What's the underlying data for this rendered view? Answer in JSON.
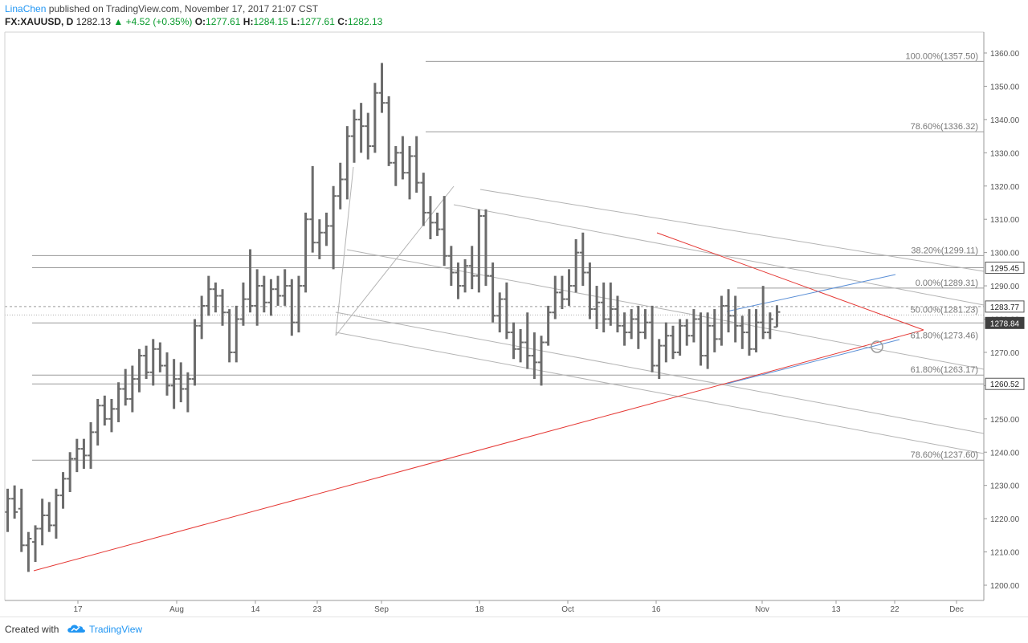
{
  "header": {
    "author": "LinaChen",
    "published_text": " published on TradingView.com, November 17, 2017 21:07 CST",
    "symbol": "FX:XAUUSD, D",
    "last_price": "1282.13",
    "change": "▲ +4.52 (+0.35%)",
    "open_label": "O:",
    "open": "1277.61",
    "high_label": "H:",
    "high": "1284.15",
    "low_label": "L:",
    "low": "1277.61",
    "close_label": "C:",
    "close": "1282.13"
  },
  "footer": {
    "created_with": "Created with",
    "brand": "TradingView",
    "logo_icon": "tradingview-cloud-icon"
  },
  "colors": {
    "bar": "#6b6b6b",
    "channel": "#b4b4b4",
    "level": "#9a9a9a",
    "trend_red": "#e53935",
    "trend_blue": "#5b8fd6",
    "axis_text": "#555555",
    "label_bg_dark": "#3f3f3f",
    "label_bg_light": "#ffffff"
  },
  "chart_data": {
    "type": "ohlc",
    "symbol": "FX:XAUUSD",
    "timeframe": "D",
    "x_tick_labels": [
      "17",
      "Aug",
      "14",
      "23",
      "Sep",
      "18",
      "Oct",
      "16",
      "Nov",
      "13",
      "22",
      "Dec"
    ],
    "y_range": [
      1196,
      1364
    ],
    "y_ticks": [
      1200,
      1210,
      1220,
      1230,
      1240,
      1250,
      1260,
      1270,
      1280,
      1290,
      1300,
      1310,
      1320,
      1330,
      1340,
      1350,
      1360
    ],
    "y_tick_labels": [
      "1200.00",
      "1210.00",
      "1220.00",
      "1230.00",
      "1240.00",
      "1250.00",
      "1260.00",
      "1270.00",
      "1280.00",
      "1290.00",
      "1300.00",
      "1310.00",
      "1320.00",
      "1330.00",
      "1340.00",
      "1350.00",
      "1360.00"
    ],
    "grid": false,
    "price_labels": [
      {
        "value": 1295.45,
        "text": "1295.45",
        "style": "light"
      },
      {
        "value": 1283.77,
        "text": "1283.77",
        "style": "light"
      },
      {
        "value": 1278.84,
        "text": "1278.84",
        "style": "dark"
      },
      {
        "value": 1260.52,
        "text": "1260.52",
        "style": "light"
      }
    ],
    "fib_levels": [
      {
        "text": "100.00%(1357.50)",
        "value": 1357.5
      },
      {
        "text": "78.60%(1336.32)",
        "value": 1336.32
      },
      {
        "text": "38.20%(1299.11)",
        "value": 1299.11
      },
      {
        "text": "0.00%(1289.31)",
        "value": 1289.31
      },
      {
        "text": "50.00%(1281.23)",
        "value": 1281.23
      },
      {
        "text": "61.80%(1273.46)",
        "value": 1273.46
      },
      {
        "text": "61.80%(1263.17)",
        "value": 1263.17
      },
      {
        "text": "78.60%(1237.60)",
        "value": 1237.6
      }
    ],
    "bars": [
      {
        "o": 1222,
        "h": 1229,
        "l": 1216,
        "c": 1226
      },
      {
        "o": 1226,
        "h": 1230,
        "l": 1220,
        "c": 1222
      },
      {
        "o": 1223,
        "h": 1229,
        "l": 1210,
        "c": 1212
      },
      {
        "o": 1212,
        "h": 1216,
        "l": 1204,
        "c": 1214
      },
      {
        "o": 1213,
        "h": 1218,
        "l": 1207,
        "c": 1217
      },
      {
        "o": 1217,
        "h": 1226,
        "l": 1212,
        "c": 1221
      },
      {
        "o": 1221,
        "h": 1225,
        "l": 1216,
        "c": 1218
      },
      {
        "o": 1218,
        "h": 1229,
        "l": 1214,
        "c": 1227
      },
      {
        "o": 1227,
        "h": 1234,
        "l": 1223,
        "c": 1232
      },
      {
        "o": 1232,
        "h": 1240,
        "l": 1228,
        "c": 1238
      },
      {
        "o": 1238,
        "h": 1244,
        "l": 1234,
        "c": 1241
      },
      {
        "o": 1241,
        "h": 1244,
        "l": 1235,
        "c": 1239
      },
      {
        "o": 1239,
        "h": 1249,
        "l": 1235,
        "c": 1246
      },
      {
        "o": 1246,
        "h": 1256,
        "l": 1242,
        "c": 1254
      },
      {
        "o": 1254,
        "h": 1257,
        "l": 1248,
        "c": 1250
      },
      {
        "o": 1250,
        "h": 1256,
        "l": 1246,
        "c": 1253
      },
      {
        "o": 1253,
        "h": 1261,
        "l": 1249,
        "c": 1259
      },
      {
        "o": 1259,
        "h": 1265,
        "l": 1254,
        "c": 1256
      },
      {
        "o": 1256,
        "h": 1266,
        "l": 1252,
        "c": 1262
      },
      {
        "o": 1262,
        "h": 1271,
        "l": 1258,
        "c": 1269
      },
      {
        "o": 1269,
        "h": 1272,
        "l": 1262,
        "c": 1264
      },
      {
        "o": 1264,
        "h": 1274,
        "l": 1260,
        "c": 1271
      },
      {
        "o": 1271,
        "h": 1273,
        "l": 1264,
        "c": 1266
      },
      {
        "o": 1266,
        "h": 1270,
        "l": 1257,
        "c": 1260
      },
      {
        "o": 1260,
        "h": 1268,
        "l": 1253,
        "c": 1262
      },
      {
        "o": 1262,
        "h": 1267,
        "l": 1255,
        "c": 1259
      },
      {
        "o": 1259,
        "h": 1264,
        "l": 1252,
        "c": 1262
      },
      {
        "o": 1262,
        "h": 1280,
        "l": 1260,
        "c": 1278
      },
      {
        "o": 1278,
        "h": 1287,
        "l": 1274,
        "c": 1284
      },
      {
        "o": 1284,
        "h": 1293,
        "l": 1281,
        "c": 1289
      },
      {
        "o": 1289,
        "h": 1291,
        "l": 1282,
        "c": 1287
      },
      {
        "o": 1287,
        "h": 1289,
        "l": 1278,
        "c": 1282
      },
      {
        "o": 1282,
        "h": 1283,
        "l": 1267,
        "c": 1270
      },
      {
        "o": 1270,
        "h": 1284,
        "l": 1267,
        "c": 1280
      },
      {
        "o": 1280,
        "h": 1291,
        "l": 1278,
        "c": 1286
      },
      {
        "o": 1286,
        "h": 1301,
        "l": 1282,
        "c": 1284
      },
      {
        "o": 1284,
        "h": 1295,
        "l": 1278,
        "c": 1290
      },
      {
        "o": 1290,
        "h": 1293,
        "l": 1282,
        "c": 1285
      },
      {
        "o": 1285,
        "h": 1292,
        "l": 1281,
        "c": 1289
      },
      {
        "o": 1289,
        "h": 1293,
        "l": 1284,
        "c": 1287
      },
      {
        "o": 1287,
        "h": 1295,
        "l": 1284,
        "c": 1290
      },
      {
        "o": 1290,
        "h": 1292,
        "l": 1275,
        "c": 1279
      },
      {
        "o": 1279,
        "h": 1293,
        "l": 1276,
        "c": 1290
      },
      {
        "o": 1290,
        "h": 1312,
        "l": 1288,
        "c": 1310
      },
      {
        "o": 1310,
        "h": 1326,
        "l": 1300,
        "c": 1303
      },
      {
        "o": 1303,
        "h": 1310,
        "l": 1298,
        "c": 1306
      },
      {
        "o": 1306,
        "h": 1312,
        "l": 1302,
        "c": 1308
      },
      {
        "o": 1308,
        "h": 1320,
        "l": 1295,
        "c": 1317
      },
      {
        "o": 1317,
        "h": 1327,
        "l": 1313,
        "c": 1322
      },
      {
        "o": 1322,
        "h": 1338,
        "l": 1316,
        "c": 1335
      },
      {
        "o": 1335,
        "h": 1343,
        "l": 1327,
        "c": 1340
      },
      {
        "o": 1340,
        "h": 1345,
        "l": 1330,
        "c": 1338
      },
      {
        "o": 1338,
        "h": 1342,
        "l": 1328,
        "c": 1332
      },
      {
        "o": 1332,
        "h": 1351,
        "l": 1330,
        "c": 1348
      },
      {
        "o": 1348,
        "h": 1357,
        "l": 1342,
        "c": 1345
      },
      {
        "o": 1345,
        "h": 1347,
        "l": 1326,
        "c": 1327
      },
      {
        "o": 1327,
        "h": 1332,
        "l": 1320,
        "c": 1330
      },
      {
        "o": 1330,
        "h": 1335,
        "l": 1322,
        "c": 1324
      },
      {
        "o": 1324,
        "h": 1332,
        "l": 1316,
        "c": 1329
      },
      {
        "o": 1329,
        "h": 1335,
        "l": 1318,
        "c": 1321
      },
      {
        "o": 1321,
        "h": 1324,
        "l": 1308,
        "c": 1312
      },
      {
        "o": 1312,
        "h": 1317,
        "l": 1304,
        "c": 1309
      },
      {
        "o": 1309,
        "h": 1312,
        "l": 1305,
        "c": 1307
      },
      {
        "o": 1307,
        "h": 1317,
        "l": 1296,
        "c": 1299
      },
      {
        "o": 1299,
        "h": 1302,
        "l": 1290,
        "c": 1294
      },
      {
        "o": 1294,
        "h": 1297,
        "l": 1286,
        "c": 1290
      },
      {
        "o": 1290,
        "h": 1298,
        "l": 1288,
        "c": 1296
      },
      {
        "o": 1296,
        "h": 1302,
        "l": 1289,
        "c": 1293
      },
      {
        "o": 1293,
        "h": 1313,
        "l": 1288,
        "c": 1311
      },
      {
        "o": 1311,
        "h": 1313,
        "l": 1290,
        "c": 1293
      },
      {
        "o": 1293,
        "h": 1297,
        "l": 1279,
        "c": 1281
      },
      {
        "o": 1281,
        "h": 1288,
        "l": 1276,
        "c": 1286
      },
      {
        "o": 1286,
        "h": 1291,
        "l": 1274,
        "c": 1276
      },
      {
        "o": 1276,
        "h": 1279,
        "l": 1268,
        "c": 1271
      },
      {
        "o": 1271,
        "h": 1277,
        "l": 1267,
        "c": 1273
      },
      {
        "o": 1273,
        "h": 1282,
        "l": 1265,
        "c": 1269
      },
      {
        "o": 1269,
        "h": 1276,
        "l": 1262,
        "c": 1267
      },
      {
        "o": 1267,
        "h": 1275,
        "l": 1260,
        "c": 1273
      },
      {
        "o": 1273,
        "h": 1284,
        "l": 1272,
        "c": 1282
      },
      {
        "o": 1282,
        "h": 1293,
        "l": 1280,
        "c": 1288
      },
      {
        "o": 1288,
        "h": 1293,
        "l": 1283,
        "c": 1286
      },
      {
        "o": 1286,
        "h": 1295,
        "l": 1284,
        "c": 1290
      },
      {
        "o": 1290,
        "h": 1304,
        "l": 1288,
        "c": 1300
      },
      {
        "o": 1300,
        "h": 1306,
        "l": 1290,
        "c": 1294
      },
      {
        "o": 1294,
        "h": 1297,
        "l": 1280,
        "c": 1283
      },
      {
        "o": 1283,
        "h": 1290,
        "l": 1277,
        "c": 1285
      },
      {
        "o": 1285,
        "h": 1291,
        "l": 1276,
        "c": 1280
      },
      {
        "o": 1280,
        "h": 1291,
        "l": 1278,
        "c": 1283
      },
      {
        "o": 1283,
        "h": 1287,
        "l": 1276,
        "c": 1278
      },
      {
        "o": 1278,
        "h": 1282,
        "l": 1272,
        "c": 1276
      },
      {
        "o": 1276,
        "h": 1283,
        "l": 1274,
        "c": 1280
      },
      {
        "o": 1280,
        "h": 1284,
        "l": 1271,
        "c": 1276
      },
      {
        "o": 1276,
        "h": 1283,
        "l": 1274,
        "c": 1279
      },
      {
        "o": 1279,
        "h": 1284,
        "l": 1264,
        "c": 1266
      },
      {
        "o": 1266,
        "h": 1274,
        "l": 1262,
        "c": 1272
      },
      {
        "o": 1272,
        "h": 1279,
        "l": 1267,
        "c": 1275
      },
      {
        "o": 1275,
        "h": 1278,
        "l": 1268,
        "c": 1270
      },
      {
        "o": 1270,
        "h": 1280,
        "l": 1269,
        "c": 1278
      },
      {
        "o": 1278,
        "h": 1280,
        "l": 1272,
        "c": 1275
      },
      {
        "o": 1275,
        "h": 1283,
        "l": 1273,
        "c": 1280
      },
      {
        "o": 1280,
        "h": 1282,
        "l": 1266,
        "c": 1269
      },
      {
        "o": 1269,
        "h": 1282,
        "l": 1265,
        "c": 1278
      },
      {
        "o": 1278,
        "h": 1283,
        "l": 1270,
        "c": 1274
      },
      {
        "o": 1274,
        "h": 1287,
        "l": 1272,
        "c": 1284
      },
      {
        "o": 1284,
        "h": 1289,
        "l": 1276,
        "c": 1281
      },
      {
        "o": 1281,
        "h": 1287,
        "l": 1273,
        "c": 1278
      },
      {
        "o": 1278,
        "h": 1281,
        "l": 1271,
        "c": 1276
      },
      {
        "o": 1276,
        "h": 1283,
        "l": 1269,
        "c": 1271
      },
      {
        "o": 1271,
        "h": 1283,
        "l": 1270,
        "c": 1279
      },
      {
        "o": 1279,
        "h": 1290,
        "l": 1274,
        "c": 1276
      },
      {
        "o": 1276,
        "h": 1282,
        "l": 1274,
        "c": 1280
      },
      {
        "o": 1277.61,
        "h": 1284.15,
        "l": 1277.61,
        "c": 1282.13
      }
    ]
  }
}
